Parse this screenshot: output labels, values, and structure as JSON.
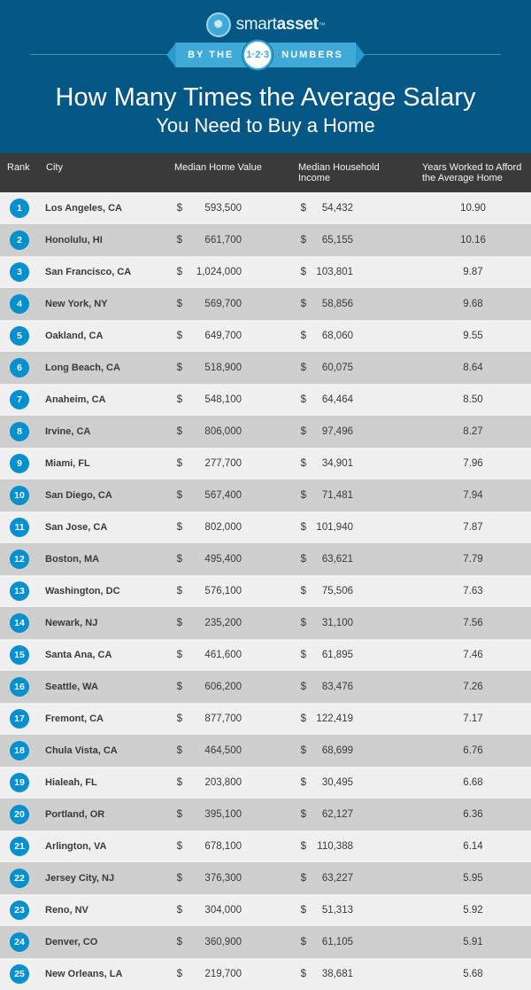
{
  "brand": {
    "name_a": "smart",
    "name_b": "asset",
    "tm": "™"
  },
  "ribbon": {
    "left_text": "BY THE",
    "badge_text": "1·2·3",
    "right_text": "NUMBERS"
  },
  "title": {
    "line1": "How Many Times the Average Salary",
    "line2": "You Need to Buy a Home"
  },
  "columns": {
    "rank": "Rank",
    "city": "City",
    "home_value": "Median Home Value",
    "income": "Median Household Income",
    "years": "Years Worked to Afford the Average Home"
  },
  "rows": [
    {
      "rank": "1",
      "city": "Los Angeles, CA",
      "home": "593,500",
      "income": "54,432",
      "years": "10.90"
    },
    {
      "rank": "2",
      "city": "Honolulu, HI",
      "home": "661,700",
      "income": "65,155",
      "years": "10.16"
    },
    {
      "rank": "3",
      "city": "San Francisco, CA",
      "home": "1,024,000",
      "income": "103,801",
      "years": "9.87"
    },
    {
      "rank": "4",
      "city": "New York, NY",
      "home": "569,700",
      "income": "58,856",
      "years": "9.68"
    },
    {
      "rank": "5",
      "city": "Oakland, CA",
      "home": "649,700",
      "income": "68,060",
      "years": "9.55"
    },
    {
      "rank": "6",
      "city": "Long Beach, CA",
      "home": "518,900",
      "income": "60,075",
      "years": "8.64"
    },
    {
      "rank": "7",
      "city": "Anaheim, CA",
      "home": "548,100",
      "income": "64,464",
      "years": "8.50"
    },
    {
      "rank": "8",
      "city": "Irvine, CA",
      "home": "806,000",
      "income": "97,496",
      "years": "8.27"
    },
    {
      "rank": "9",
      "city": "Miami, FL",
      "home": "277,700",
      "income": "34,901",
      "years": "7.96"
    },
    {
      "rank": "10",
      "city": "San Diego, CA",
      "home": "567,400",
      "income": "71,481",
      "years": "7.94"
    },
    {
      "rank": "11",
      "city": "San Jose, CA",
      "home": "802,000",
      "income": "101,940",
      "years": "7.87"
    },
    {
      "rank": "12",
      "city": "Boston, MA",
      "home": "495,400",
      "income": "63,621",
      "years": "7.79"
    },
    {
      "rank": "13",
      "city": "Washington, DC",
      "home": "576,100",
      "income": "75,506",
      "years": "7.63"
    },
    {
      "rank": "14",
      "city": "Newark, NJ",
      "home": "235,200",
      "income": "31,100",
      "years": "7.56"
    },
    {
      "rank": "15",
      "city": "Santa Ana, CA",
      "home": "461,600",
      "income": "61,895",
      "years": "7.46"
    },
    {
      "rank": "16",
      "city": "Seattle, WA",
      "home": "606,200",
      "income": "83,476",
      "years": "7.26"
    },
    {
      "rank": "17",
      "city": "Fremont, CA",
      "home": "877,700",
      "income": "122,419",
      "years": "7.17"
    },
    {
      "rank": "18",
      "city": "Chula Vista, CA",
      "home": "464,500",
      "income": "68,699",
      "years": "6.76"
    },
    {
      "rank": "19",
      "city": "Hialeah, FL",
      "home": "203,800",
      "income": "30,495",
      "years": "6.68"
    },
    {
      "rank": "20",
      "city": "Portland, OR",
      "home": "395,100",
      "income": "62,127",
      "years": "6.36"
    },
    {
      "rank": "21",
      "city": "Arlington, VA",
      "home": "678,100",
      "income": "110,388",
      "years": "6.14"
    },
    {
      "rank": "22",
      "city": "Jersey City, NJ",
      "home": "376,300",
      "income": "63,227",
      "years": "5.95"
    },
    {
      "rank": "23",
      "city": "Reno, NV",
      "home": "304,000",
      "income": "51,313",
      "years": "5.92"
    },
    {
      "rank": "24",
      "city": "Denver, CO",
      "home": "360,900",
      "income": "61,105",
      "years": "5.91"
    },
    {
      "rank": "25",
      "city": "New Orleans, LA",
      "home": "219,700",
      "income": "38,681",
      "years": "5.68"
    }
  ],
  "colors": {
    "header_bg": "#035784",
    "ribbon_bg": "#3fa9d8",
    "rank_badge_bg": "#0090cd",
    "thead_bg": "#3a3a3a",
    "row_odd_bg": "#f0f0f0",
    "row_even_bg": "#cfcfcf"
  },
  "currency_symbol": "$"
}
